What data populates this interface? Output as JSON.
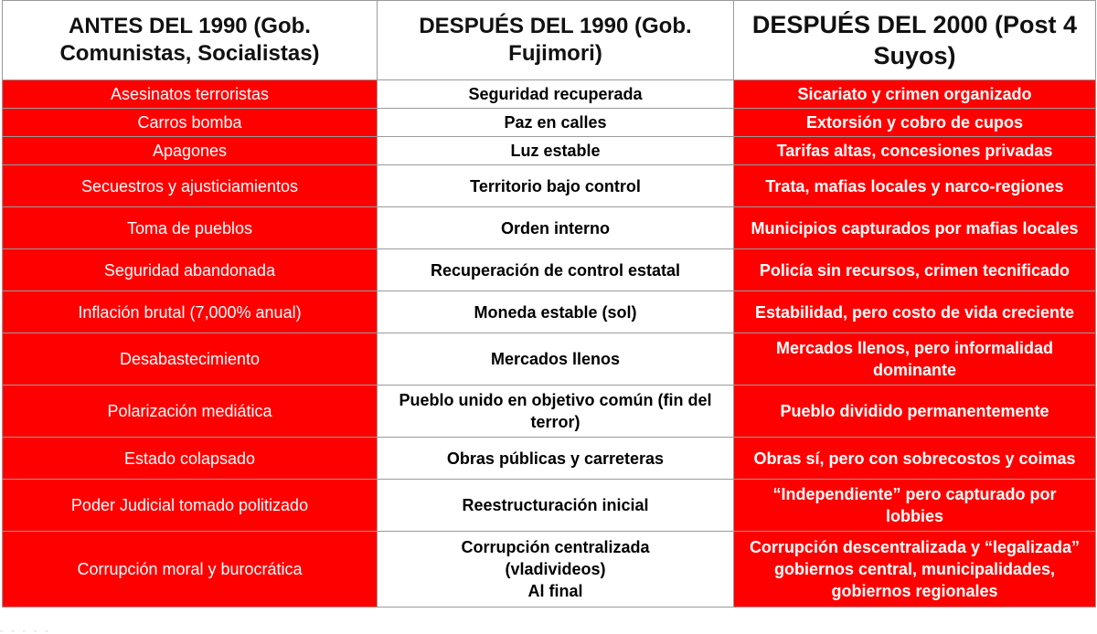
{
  "headers": [
    [
      "ANTES DEL 1990 (Gob.",
      "Comunistas, Socialistas)"
    ],
    [
      "DESPUÉS DEL 1990 (Gob.",
      "Fujimori)"
    ],
    [
      "DESPUÉS DEL 2000 (Post 4",
      "Suyos)"
    ]
  ],
  "rows": [
    {
      "before": [
        "Asesinatos terroristas"
      ],
      "after1990": [
        "Seguridad recuperada"
      ],
      "after2000": [
        "Sicariato y crimen organizado"
      ]
    },
    {
      "before": [
        "Carros bomba"
      ],
      "after1990": [
        "Paz en calles"
      ],
      "after2000": [
        "Extorsión y cobro de cupos"
      ]
    },
    {
      "before": [
        "Apagones"
      ],
      "after1990": [
        "Luz estable"
      ],
      "after2000": [
        "Tarifas altas, concesiones privadas"
      ]
    },
    {
      "before": [
        "Secuestros y ajusticiamientos"
      ],
      "after1990": [
        "Territorio bajo control"
      ],
      "after2000": [
        "Trata, mafias locales y narco-regiones"
      ]
    },
    {
      "before": [
        "Toma de pueblos"
      ],
      "after1990": [
        "Orden interno"
      ],
      "after2000": [
        "Municipios capturados por mafias locales"
      ]
    },
    {
      "before": [
        "Seguridad abandonada"
      ],
      "after1990": [
        "Recuperación de control estatal"
      ],
      "after2000": [
        "Policía sin recursos, crimen tecnificado"
      ]
    },
    {
      "before": [
        "Inflación brutal (7,000% anual)"
      ],
      "after1990": [
        "Moneda estable (sol)"
      ],
      "after2000": [
        "Estabilidad, pero costo de vida creciente"
      ]
    },
    {
      "before": [
        "Desabastecimiento"
      ],
      "after1990": [
        "Mercados llenos"
      ],
      "after2000": [
        "Mercados llenos, pero informalidad",
        "dominante"
      ]
    },
    {
      "before": [
        "Polarización mediática"
      ],
      "after1990": [
        "Pueblo unido en objetivo común (fin del",
        "terror)"
      ],
      "after2000": [
        "Pueblo dividido permanentemente"
      ]
    },
    {
      "before": [
        "Estado colapsado"
      ],
      "after1990": [
        "Obras públicas y carreteras"
      ],
      "after2000": [
        "Obras sí, pero con sobrecostos y coimas"
      ]
    },
    {
      "before": [
        "Poder Judicial tomado politizado"
      ],
      "after1990": [
        "Reestructuración inicial"
      ],
      "after2000": [
        "“Independiente” pero capturado por",
        "lobbies"
      ]
    },
    {
      "before": [
        "Corrupción moral y burocrática"
      ],
      "after1990": [
        "Corrupción centralizada",
        "(vladivideos)",
        "Al final"
      ],
      "after2000": [
        "Corrupción descentralizada y “legalizada”",
        "gobiernos central, municipalidades,",
        "gobiernos regionales"
      ]
    }
  ],
  "colors": {
    "red": "#ff0000",
    "white": "#ffffff",
    "border": "#9a9a9a"
  }
}
